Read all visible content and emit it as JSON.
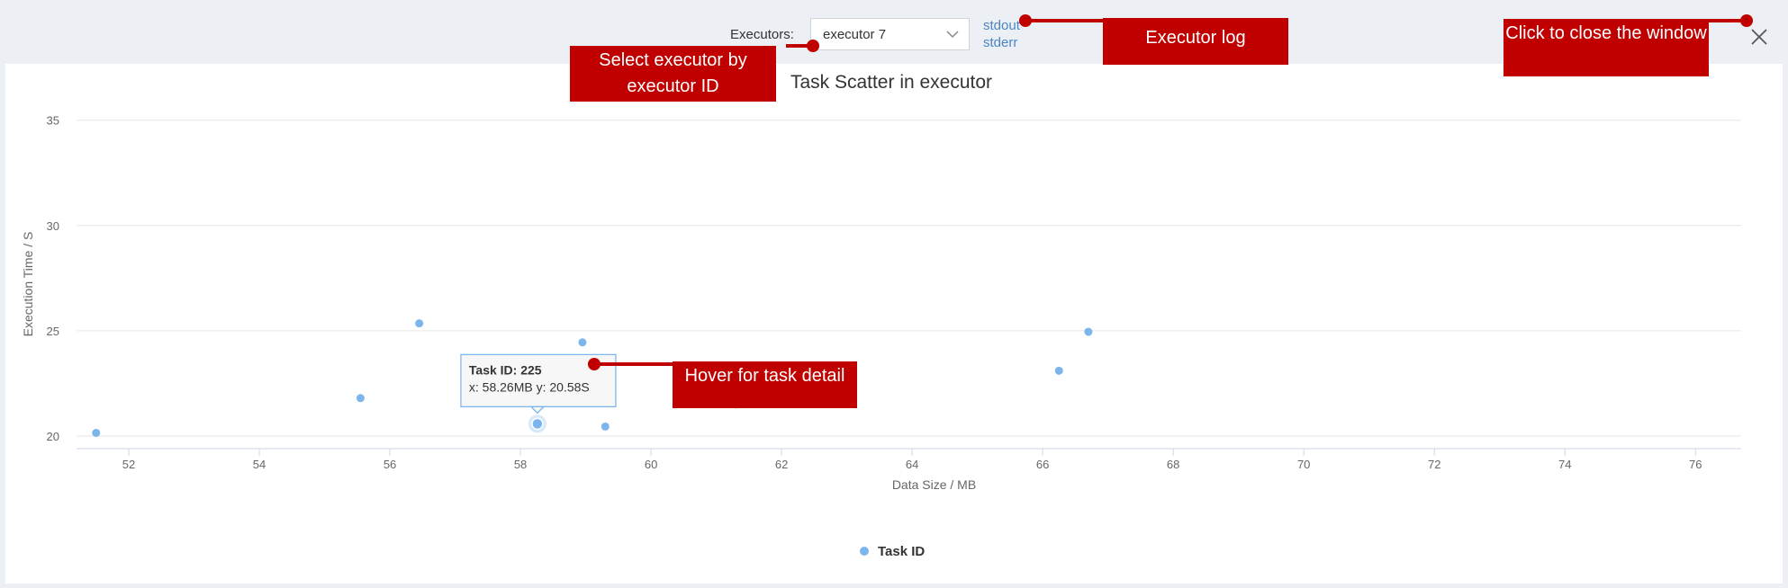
{
  "toolbar": {
    "executors_label": "Executors:",
    "selected_executor": "executor 7",
    "stdout_label": "stdout",
    "stderr_label": "stderr"
  },
  "icons": {
    "dropdown": "chevron-down-icon",
    "close": "close-icon"
  },
  "colors": {
    "point": "#7cb5ec",
    "callout": "#c00000",
    "link": "#4a86c5"
  },
  "callouts": {
    "select_executor": "Select executor by executor ID",
    "executor_log": "Executor log",
    "close_window": "Click to close the window",
    "hover_task": "Hover for task detail"
  },
  "tooltip": {
    "title": "Task ID: 225",
    "detail": "x: 58.26MB y: 20.58S"
  },
  "chart_data": {
    "type": "scatter",
    "title": "Task Scatter in executor",
    "xlabel": "Data Size / MB",
    "ylabel": "Execution Time / S",
    "xlim": [
      51.2,
      76.7
    ],
    "ylim": [
      19.4,
      35.8
    ],
    "xticks": [
      52,
      54,
      56,
      58,
      60,
      62,
      64,
      66,
      68,
      70,
      72,
      74,
      76
    ],
    "yticks": [
      20,
      25,
      30,
      35
    ],
    "grid": true,
    "legend": "bottom-center",
    "series": [
      {
        "name": "Task ID",
        "x": [
          51.5,
          55.55,
          56.45,
          58.26,
          58.95,
          59.3,
          61.3,
          66.25,
          66.7
        ],
        "y": [
          20.15,
          21.8,
          25.35,
          20.58,
          24.45,
          20.45,
          21.5,
          23.1,
          24.95
        ]
      }
    ],
    "highlighted_index": 3
  }
}
